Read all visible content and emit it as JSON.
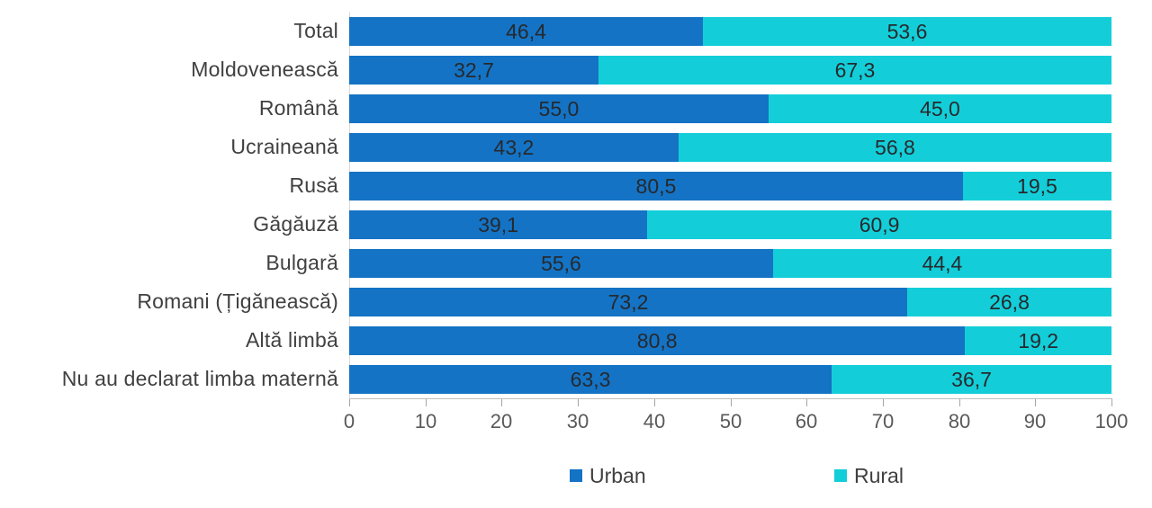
{
  "chart_data": {
    "type": "bar",
    "orientation": "horizontal-stacked",
    "title": "",
    "xlabel": "",
    "ylabel": "",
    "categories": [
      "Total",
      "Moldovenească",
      "Română",
      "Ucraineană",
      "Rusă",
      "Găgăuză",
      "Bulgară",
      "Romani (Țigănească)",
      "Altă limbă",
      "Nu au declarat limba maternă"
    ],
    "series": [
      {
        "name": "Urban",
        "color": "#1473c4",
        "values": [
          46.4,
          32.7,
          55.0,
          43.2,
          80.5,
          39.1,
          55.6,
          73.2,
          80.8,
          63.3
        ],
        "display_labels": [
          "46,4",
          "32,7",
          "55,0",
          "43,2",
          "80,5",
          "39,1",
          "55,6",
          "73,2",
          "80,8",
          "63,3"
        ]
      },
      {
        "name": "Rural",
        "color": "#13ced8",
        "values": [
          53.6,
          67.3,
          45.0,
          56.8,
          19.5,
          60.9,
          44.4,
          26.8,
          19.2,
          36.7
        ],
        "display_labels": [
          "53,6",
          "67,3",
          "45,0",
          "56,8",
          "19,5",
          "60,9",
          "44,4",
          "26,8",
          "19,2",
          "36,7"
        ]
      }
    ],
    "x_axis": {
      "min": 0,
      "max": 100,
      "step": 10,
      "tick_labels": [
        "0",
        "10",
        "20",
        "30",
        "40",
        "50",
        "60",
        "70",
        "80",
        "90",
        "100"
      ]
    },
    "legend": {
      "position": "bottom",
      "items": [
        {
          "label": "Urban",
          "color": "#1473c4"
        },
        {
          "label": "Rural",
          "color": "#13ced8"
        }
      ]
    },
    "grid": false
  }
}
